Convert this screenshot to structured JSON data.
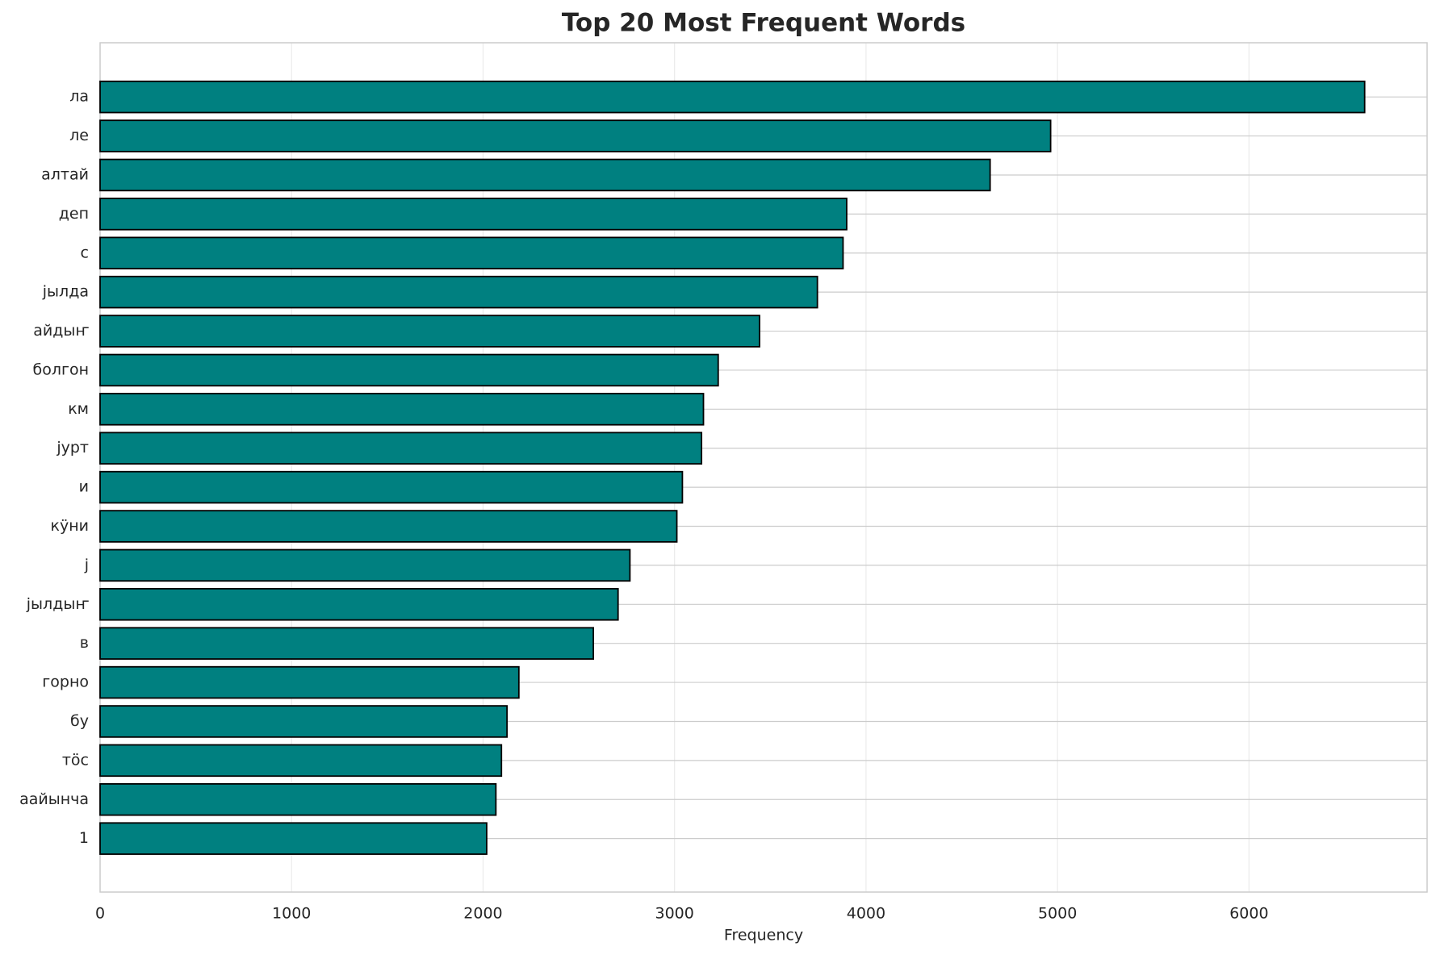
{
  "chart_data": {
    "type": "barh",
    "title": "Top 20 Most Frequent Words",
    "xlabel": "Frequency",
    "categories": [
      "ла",
      "ле",
      "алтай",
      "деп",
      "с",
      "јылда",
      "айдыҥ",
      "болгон",
      "км",
      "јурт",
      "и",
      "кӱни",
      "ј",
      "јылдыҥ",
      "в",
      "горно",
      "бу",
      "тӧс",
      "аайынча",
      "1"
    ],
    "values": [
      6604,
      4964,
      4648,
      3899,
      3880,
      3746,
      3444,
      3228,
      3151,
      3141,
      3041,
      3012,
      2767,
      2705,
      2576,
      2187,
      2125,
      2096,
      2067,
      2019
    ],
    "color": "#008080",
    "edgecolor": "#000000",
    "xlim": [
      0,
      6930
    ],
    "xticks": [
      0,
      1000,
      2000,
      3000,
      4000,
      5000,
      6000
    ],
    "grid": true
  }
}
